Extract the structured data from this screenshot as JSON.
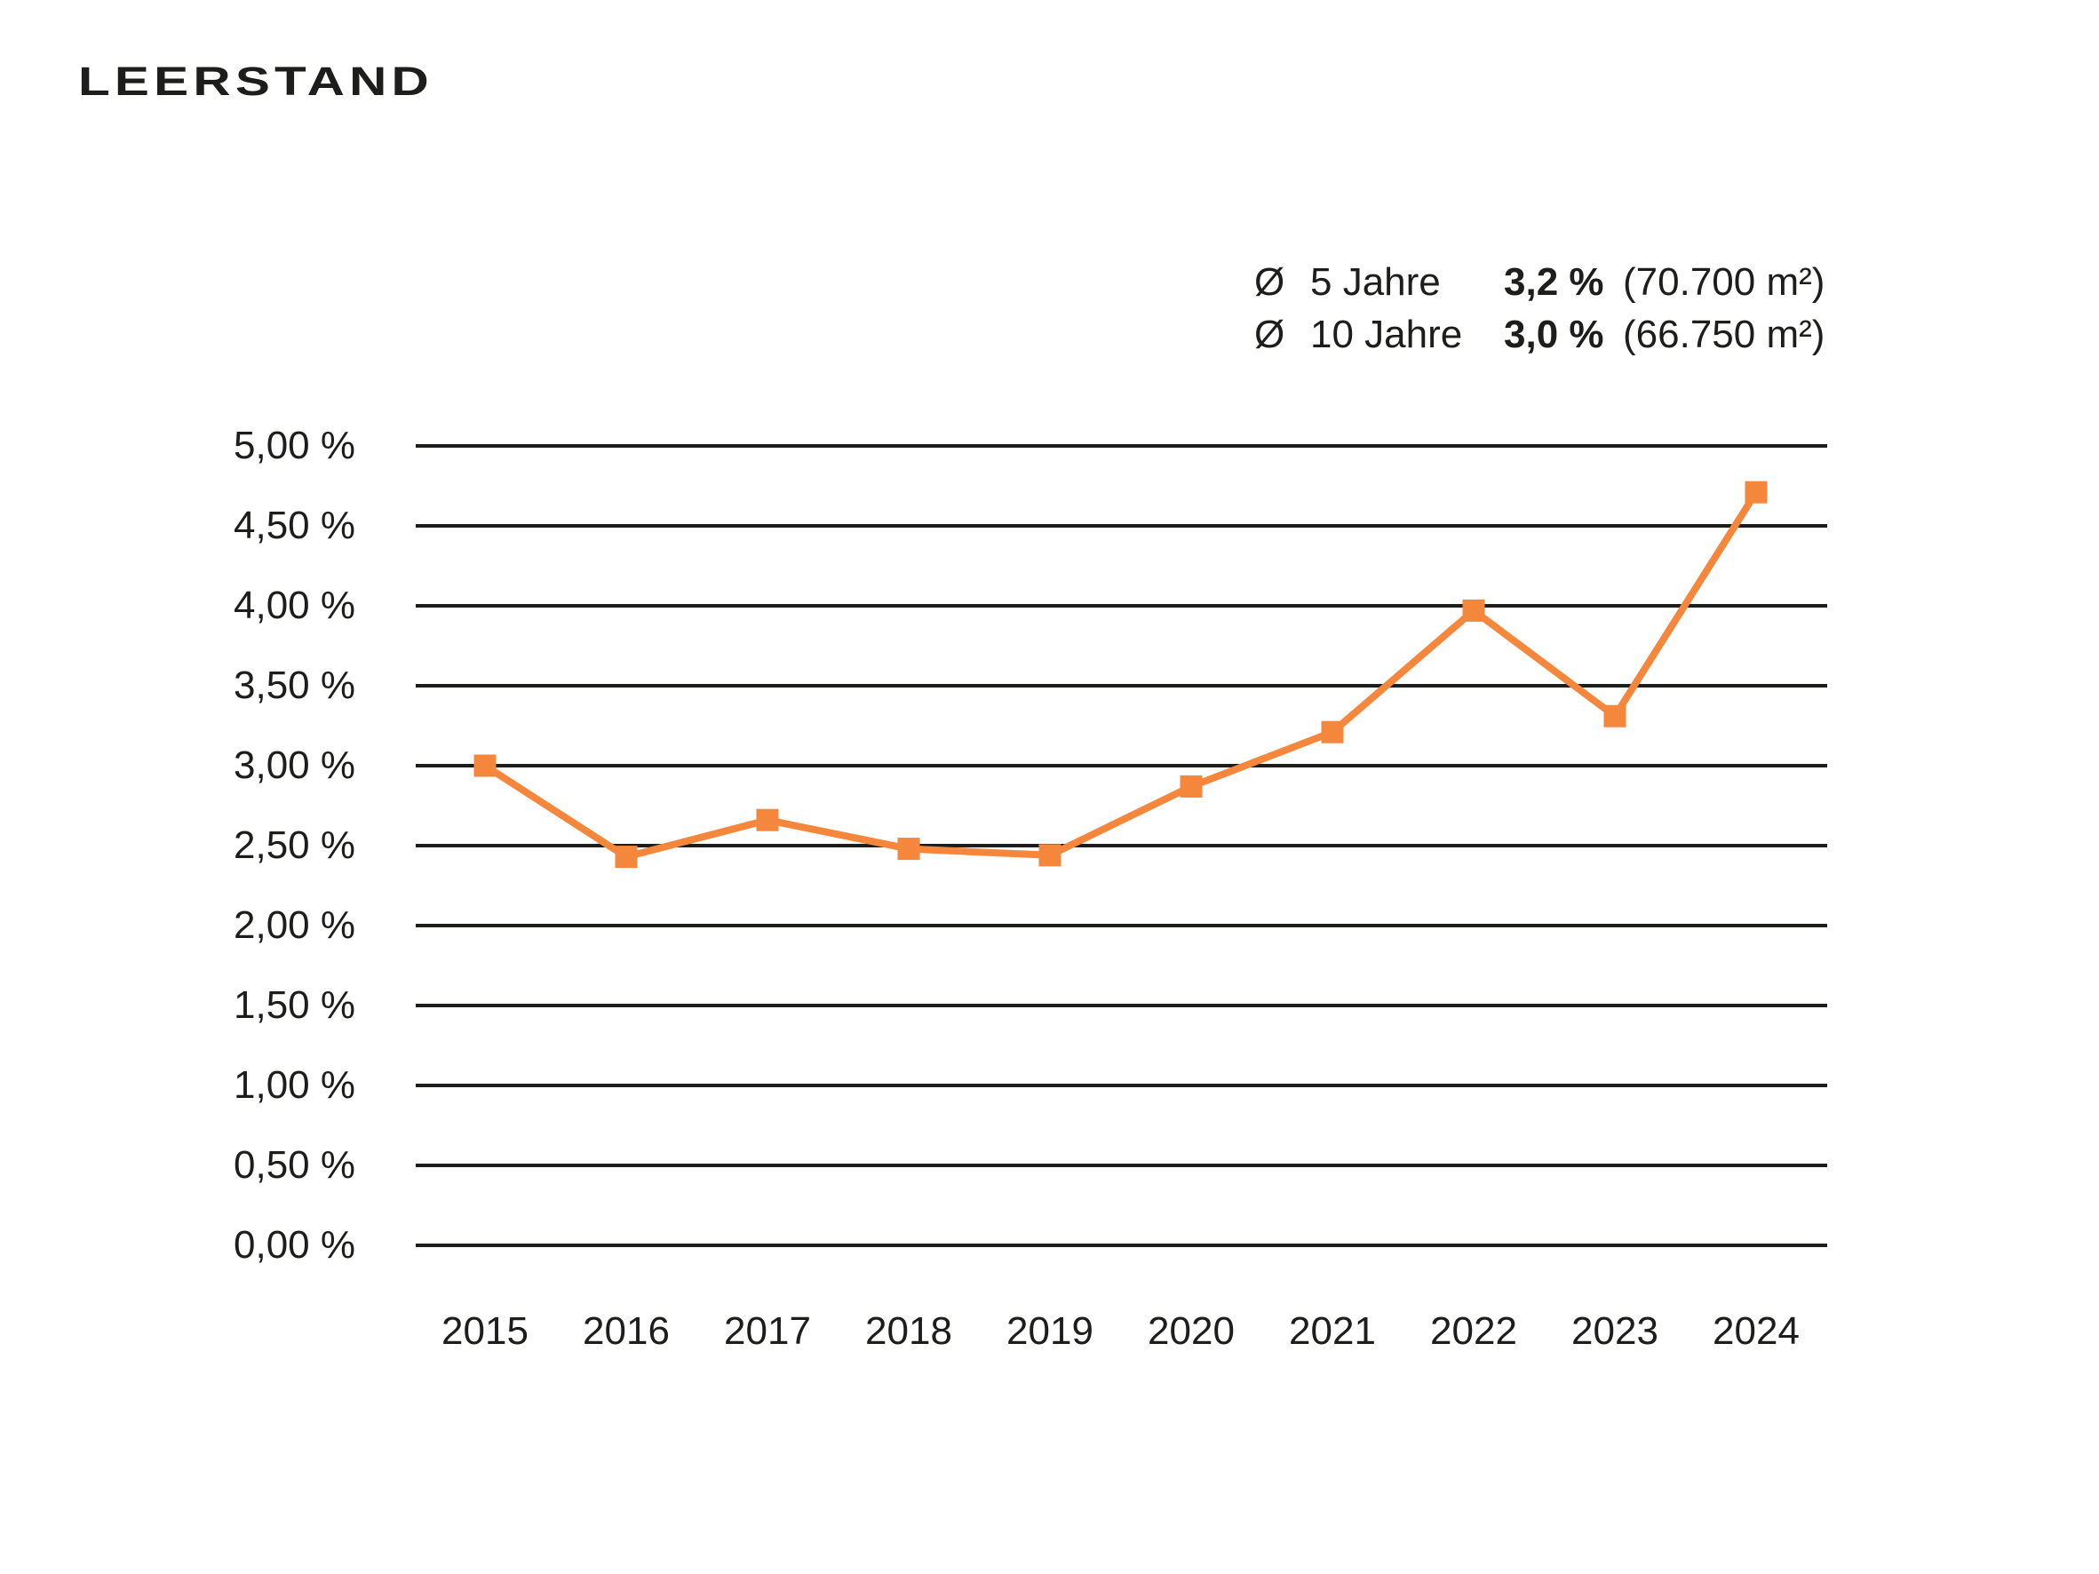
{
  "page": {
    "title": "LEERSTAND"
  },
  "colors": {
    "accent": "#F5873C",
    "grid": "#1D1D1B",
    "text": "#1D1D1B",
    "background": "#FFFFFF"
  },
  "legend": {
    "rows": [
      {
        "symbol": "Ø",
        "label": "5 Jahre",
        "value": "3,2 %",
        "detail": "(70.700 m²)"
      },
      {
        "symbol": "Ø",
        "label": "10 Jahre",
        "value": "3,0 %",
        "detail": "(66.750 m²)"
      }
    ]
  },
  "chart_data": {
    "type": "line",
    "title": "LEERSTAND",
    "categories": [
      "2015",
      "2016",
      "2017",
      "2018",
      "2019",
      "2020",
      "2021",
      "2022",
      "2023",
      "2024"
    ],
    "values": [
      3.0,
      2.43,
      2.66,
      2.48,
      2.44,
      2.87,
      3.21,
      3.97,
      3.31,
      4.71
    ],
    "unit": "%",
    "ylim": [
      0,
      5
    ],
    "y_tick_step": 0.5,
    "y_tick_labels": [
      "0,00 %",
      "0,50 %",
      "1,00 %",
      "1,50 %",
      "2,00 %",
      "2,50 %",
      "3,00 %",
      "3,50 %",
      "4,00 %",
      "4,50 %",
      "5,00 %"
    ],
    "xlabel": "",
    "ylabel": "",
    "grid": true,
    "marker": "square",
    "line_color": "#F5873C",
    "legend_position": "top-right"
  }
}
